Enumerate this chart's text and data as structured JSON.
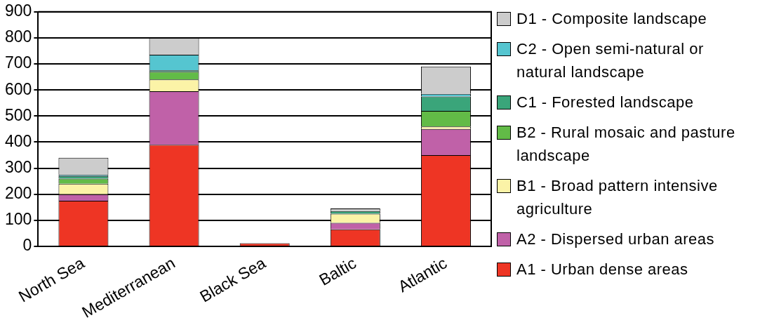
{
  "chart_data": {
    "type": "bar",
    "stacked": true,
    "categories": [
      "North Sea",
      "Mediterranean",
      "Black Sea",
      "Baltic",
      "Atlantic"
    ],
    "series": [
      {
        "name": "A1 - Urban dense areas",
        "color": "#ee3524",
        "values": [
          175,
          390,
          12,
          65,
          350
        ]
      },
      {
        "name": "A2 - Dispersed urban areas",
        "color": "#c061a8",
        "values": [
          25,
          205,
          0,
          25,
          100
        ]
      },
      {
        "name": "B1 - Broad pattern intensive agriculture",
        "color": "#fbf3a7",
        "values": [
          40,
          45,
          0,
          35,
          10
        ]
      },
      {
        "name": "B2 - Rural mosaic and pasture landscape",
        "color": "#62bb47",
        "values": [
          20,
          30,
          0,
          null,
          60
        ]
      },
      {
        "name": "C1 - Forested landscape",
        "color": "#3aa57a",
        "values": [
          10,
          5,
          0,
          10,
          55
        ]
      },
      {
        "name": "C2 - Open semi-natural or natural landscape",
        "color": "#55c5d0",
        "values": [
          5,
          60,
          0,
          0,
          10
        ]
      },
      {
        "name": "D1 - Composite landscape",
        "color": "#cccccc",
        "values": [
          65,
          65,
          0,
          10,
          105
        ]
      }
    ],
    "ylim": [
      0,
      900
    ],
    "yticks": [
      0,
      100,
      200,
      300,
      400,
      500,
      600,
      700,
      800,
      900
    ],
    "grid": "y",
    "legend": "right"
  }
}
